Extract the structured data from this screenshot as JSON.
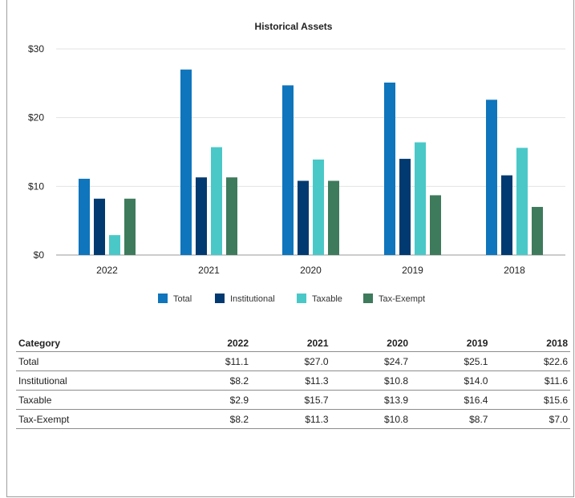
{
  "chart_data": {
    "type": "bar",
    "title": "Historical Assets",
    "categories": [
      "2022",
      "2021",
      "2020",
      "2019",
      "2018"
    ],
    "series": [
      {
        "name": "Total",
        "color": "#0f75bc",
        "values": [
          11.1,
          27.0,
          24.7,
          25.1,
          22.6
        ]
      },
      {
        "name": "Institutional",
        "color": "#003a70",
        "values": [
          8.2,
          11.3,
          10.8,
          14.0,
          11.6
        ]
      },
      {
        "name": "Taxable",
        "color": "#4ac8c8",
        "values": [
          2.9,
          15.7,
          13.9,
          16.4,
          15.6
        ]
      },
      {
        "name": "Tax-Exempt",
        "color": "#3e7a5c",
        "values": [
          8.2,
          11.3,
          10.8,
          8.7,
          7.0
        ]
      }
    ],
    "yticks": [
      0,
      10,
      20,
      30
    ],
    "ytick_labels": [
      "$0",
      "$10",
      "$20",
      "$30"
    ],
    "ylim": [
      0,
      30
    ],
    "grid": true,
    "legend_position": "bottom"
  },
  "table": {
    "headers": [
      "Category",
      "2022",
      "2021",
      "2020",
      "2019",
      "2018"
    ],
    "rows": [
      [
        "Total",
        "$11.1",
        "$27.0",
        "$24.7",
        "$25.1",
        "$22.6"
      ],
      [
        "Institutional",
        "$8.2",
        "$11.3",
        "$10.8",
        "$14.0",
        "$11.6"
      ],
      [
        "Taxable",
        "$2.9",
        "$15.7",
        "$13.9",
        "$16.4",
        "$15.6"
      ],
      [
        "Tax-Exempt",
        "$8.2",
        "$11.3",
        "$10.8",
        "$8.7",
        "$7.0"
      ]
    ]
  }
}
